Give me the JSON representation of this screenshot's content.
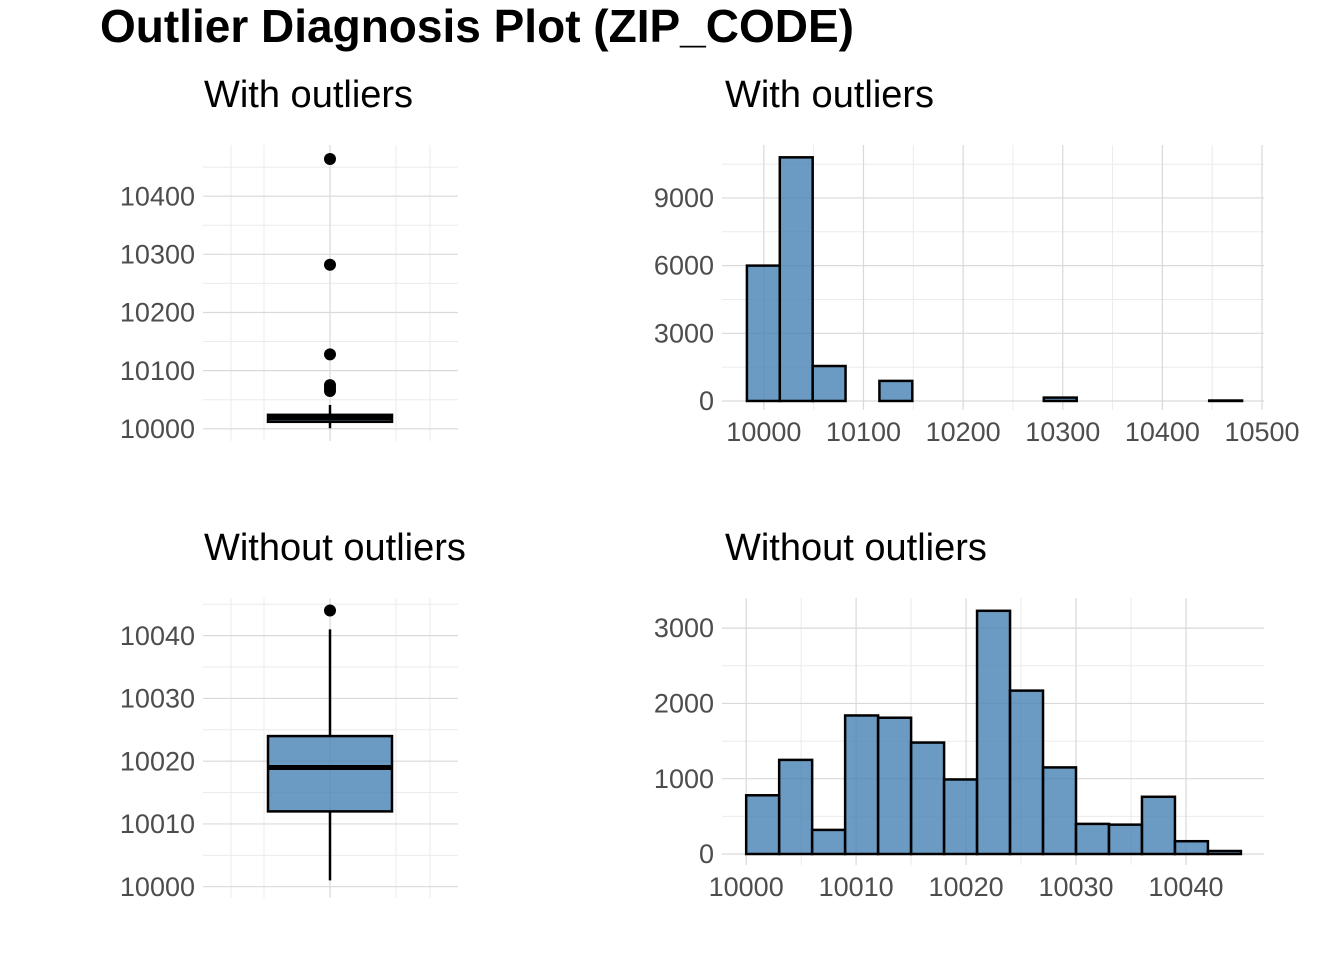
{
  "title": "Outlier Diagnosis Plot (ZIP_CODE)",
  "chart_data": [
    {
      "type": "box",
      "title": "With outliers",
      "color": "#4682b4",
      "q1": 10012,
      "median": 10019,
      "q3": 10024,
      "whisker_low": 10001,
      "whisker_high": 10041,
      "outliers": [
        10065,
        10070,
        10075,
        10128,
        10282,
        10464
      ],
      "ylim": [
        9979,
        10488
      ],
      "yticks": [
        10000,
        10100,
        10200,
        10300,
        10400
      ],
      "grid": true
    },
    {
      "type": "histogram",
      "title": "With outliers",
      "color": "#4682b4",
      "bins": [
        9983,
        10016,
        10049,
        10082,
        10116,
        10149,
        10182,
        10215,
        10248,
        10281,
        10314,
        10348,
        10381,
        10414,
        10447,
        10480
      ],
      "counts": [
        6000,
        10800,
        1550,
        0,
        890,
        0,
        0,
        0,
        0,
        150,
        0,
        0,
        0,
        0,
        20
      ],
      "xlim": [
        9958,
        10502
      ],
      "xticks": [
        10000,
        10100,
        10200,
        10300,
        10400,
        10500
      ],
      "ylim": [
        -400,
        11347
      ],
      "yticks": [
        0,
        3000,
        6000,
        9000
      ],
      "grid": true
    },
    {
      "type": "box",
      "title": "Without outliers",
      "color": "#4682b4",
      "q1": 10012,
      "median": 10019,
      "q3": 10024,
      "whisker_low": 10001,
      "whisker_high": 10041,
      "outliers": [
        10044
      ],
      "ylim": [
        9998.2,
        10046
      ],
      "yticks": [
        10000,
        10010,
        10020,
        10030,
        10040
      ],
      "grid": true
    },
    {
      "type": "histogram",
      "title": "Without outliers",
      "color": "#4682b4",
      "bins": [
        10000,
        10003,
        10006,
        10009,
        10012,
        10015,
        10018,
        10021,
        10024,
        10027,
        10030,
        10033,
        10036,
        10039,
        10042,
        10045
      ],
      "counts": [
        780,
        1250,
        320,
        1840,
        1810,
        1480,
        990,
        3230,
        2170,
        1150,
        400,
        390,
        760,
        170,
        40
      ],
      "xlim": [
        9997.8,
        10047.1
      ],
      "xticks": [
        10000,
        10010,
        10020,
        10030,
        10040
      ],
      "ylim": [
        -146,
        3400
      ],
      "yticks": [
        0,
        1000,
        2000,
        3000
      ],
      "grid": true
    }
  ]
}
